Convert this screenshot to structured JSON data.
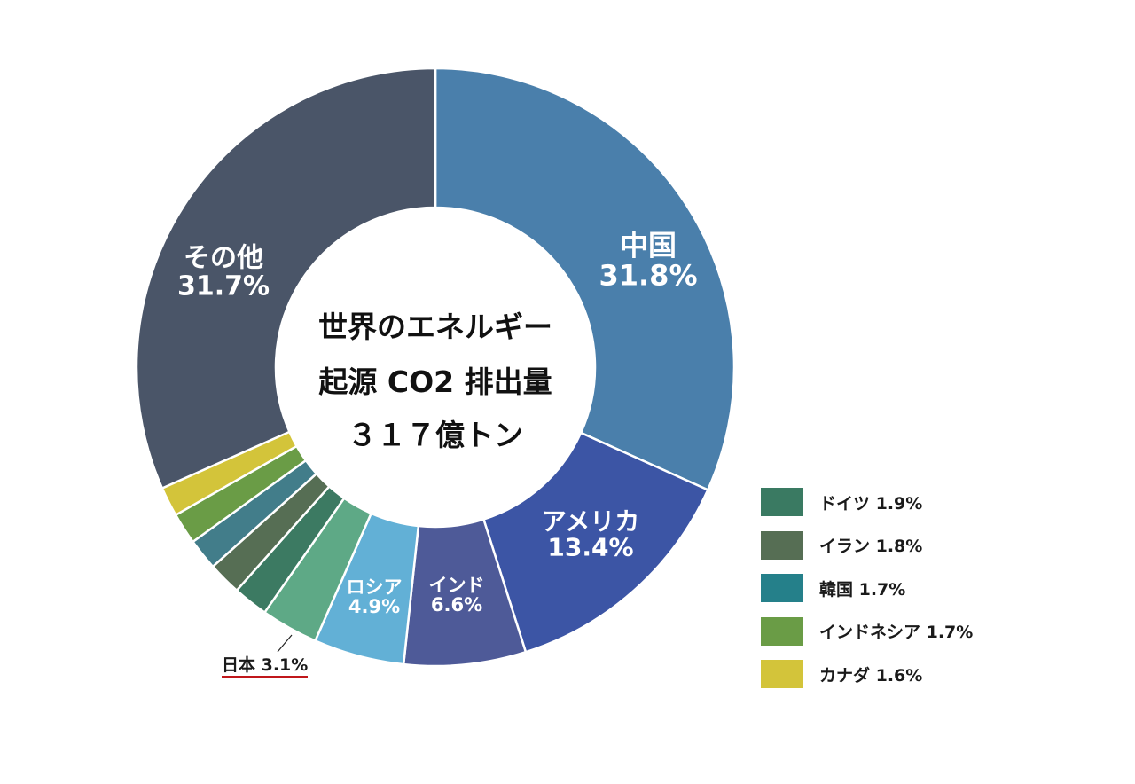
{
  "chart_data": {
    "type": "pie",
    "subtype": "donut",
    "title": "世界のエネルギー起源 CO2 排出量 317億トン",
    "center_text": [
      "世界のエネルギー",
      "起源 CO2 排出量",
      "３１７億トン"
    ],
    "unit": "%",
    "start_angle": "top, clockwise",
    "slices": [
      {
        "label": "中国",
        "value": 31.8,
        "color": "#4a7fab",
        "display": "inside"
      },
      {
        "label": "アメリカ",
        "value": 13.4,
        "color": "#3c55a5",
        "display": "inside"
      },
      {
        "label": "インド",
        "value": 6.6,
        "color": "#4e5a98",
        "display": "inside"
      },
      {
        "label": "ロシア",
        "value": 4.9,
        "color": "#62b0d6",
        "display": "inside"
      },
      {
        "label": "日本",
        "value": 3.1,
        "color": "#5ea986",
        "display": "callout"
      },
      {
        "label": "ドイツ",
        "value": 1.9,
        "color": "#3c7a62",
        "display": "legend"
      },
      {
        "label": "イラン",
        "value": 1.8,
        "color": "#566e54",
        "display": "legend"
      },
      {
        "label": "韓国",
        "value": 1.7,
        "color": "#427d8a",
        "display": "legend"
      },
      {
        "label": "インドネシア",
        "value": 1.7,
        "color": "#6a9c46",
        "display": "legend"
      },
      {
        "label": "カナダ",
        "value": 1.6,
        "color": "#d3c43a",
        "display": "legend"
      },
      {
        "label": "その他",
        "value": 31.7,
        "color": "#4a5568",
        "display": "inside"
      }
    ],
    "legend": [
      {
        "label": "ドイツ 1.9%",
        "color": "#3a7a62"
      },
      {
        "label": "イラン 1.8%",
        "color": "#566e54"
      },
      {
        "label": "韓国 1.7%",
        "color": "#25808a"
      },
      {
        "label": "インドネシア 1.7%",
        "color": "#6a9c46"
      },
      {
        "label": "カナダ 1.6%",
        "color": "#d3c43a"
      }
    ],
    "legend_position": "right-bottom"
  },
  "labels": {
    "china": {
      "name": "中国",
      "pct": "31.8%"
    },
    "usa": {
      "name": "アメリカ",
      "pct": "13.4%"
    },
    "india": {
      "name": "インド",
      "pct": "6.6%"
    },
    "russia": {
      "name": "ロシア",
      "pct": "4.9%"
    },
    "other": {
      "name": "その他",
      "pct": "31.7%"
    },
    "japan": "日本 3.1%"
  }
}
